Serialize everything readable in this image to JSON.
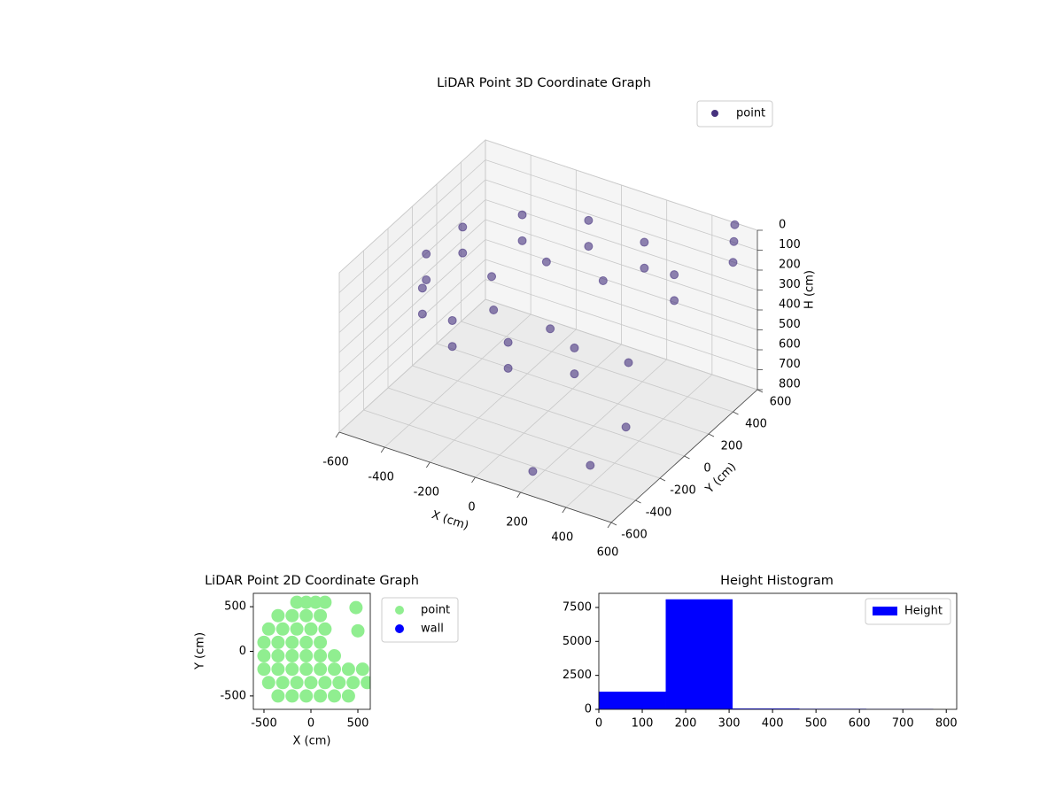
{
  "chart_data": [
    {
      "type": "scatter3d",
      "title": "LiDAR Point 3D Coordinate Graph",
      "xlabel": "X (cm)",
      "ylabel": "Y (cm)",
      "zlabel": "H (cm)",
      "xlim": [
        -600,
        600
      ],
      "ylim": [
        -600,
        600
      ],
      "zlim": [
        0,
        800
      ],
      "zinvert": true,
      "xticks": [
        -600,
        -400,
        -200,
        0,
        200,
        400,
        600
      ],
      "yticks": [
        -600,
        -400,
        -200,
        0,
        200,
        400,
        600
      ],
      "zticks": [
        0,
        100,
        200,
        300,
        400,
        500,
        600,
        700,
        800
      ],
      "legend": "upper right",
      "series": [
        {
          "name": "point",
          "color": "#46327e",
          "x": [
            383,
            171,
            -87,
            -321,
            -470,
            -492,
            -383,
            -171,
            87,
            321,
            383,
            171,
            -87,
            -321,
            -470,
            -492,
            -383,
            -171,
            87,
            321,
            125,
            -125,
            -250,
            -125,
            125,
            550,
            600,
            500,
            400,
            450,
            300,
            200
          ],
          "y": [
            321,
            470,
            492,
            383,
            171,
            -87,
            -321,
            -470,
            -492,
            -383,
            321,
            470,
            492,
            383,
            171,
            -87,
            -321,
            -470,
            -492,
            -383,
            217,
            217,
            0,
            -217,
            -217,
            500,
            400,
            600,
            -400,
            -200,
            100,
            -500
          ],
          "z": [
            150,
            150,
            150,
            150,
            150,
            150,
            150,
            150,
            150,
            150,
            280,
            280,
            280,
            280,
            280,
            280,
            280,
            280,
            280,
            280,
            220,
            220,
            220,
            220,
            220,
            20,
            50,
            10,
            700,
            600,
            500,
            750
          ]
        }
      ]
    },
    {
      "type": "scatter",
      "title": "LiDAR Point 2D Coordinate Graph",
      "xlabel": "X (cm)",
      "ylabel": "Y (cm)",
      "xlim": [
        -613,
        632
      ],
      "ylim": [
        -650,
        650
      ],
      "xticks": [
        -500,
        0,
        500
      ],
      "yticks": [
        -500,
        0,
        500
      ],
      "legend": "outside right",
      "series": [
        {
          "name": "point",
          "color": "#90ee90",
          "x": [
            -150,
            -50,
            50,
            150,
            480,
            -350,
            -200,
            -50,
            100,
            -450,
            -300,
            -150,
            0,
            150,
            500,
            -500,
            -350,
            -200,
            -50,
            100,
            -500,
            -350,
            -200,
            -50,
            100,
            250,
            -500,
            -350,
            -200,
            -50,
            100,
            250,
            400,
            550,
            -450,
            -300,
            -150,
            0,
            150,
            300,
            450,
            600,
            -350,
            -200,
            -50,
            100,
            250,
            400
          ],
          "y": [
            550,
            550,
            550,
            550,
            490,
            400,
            400,
            400,
            400,
            250,
            250,
            250,
            250,
            250,
            230,
            100,
            100,
            100,
            100,
            100,
            -50,
            -50,
            -50,
            -50,
            -50,
            -50,
            -200,
            -200,
            -200,
            -200,
            -200,
            -200,
            -200,
            -200,
            -350,
            -350,
            -350,
            -350,
            -350,
            -350,
            -350,
            -350,
            -500,
            -500,
            -500,
            -500,
            -500,
            -500
          ]
        },
        {
          "name": "wall",
          "color": "#0000ff",
          "x": [],
          "y": []
        }
      ]
    },
    {
      "type": "histogram",
      "title": "Height Histogram",
      "xlim": [
        0,
        824
      ],
      "ylim": [
        0,
        8540
      ],
      "xticks": [
        0,
        100,
        200,
        300,
        400,
        500,
        600,
        700,
        800
      ],
      "yticks": [
        0,
        2500,
        5000,
        7500
      ],
      "legend": "upper right",
      "bins": [
        0,
        154,
        308,
        462,
        616,
        770
      ],
      "series": [
        {
          "name": "Height",
          "color": "#0000ff",
          "values": [
            1300,
            8100,
            60,
            40,
            30
          ]
        }
      ]
    }
  ]
}
